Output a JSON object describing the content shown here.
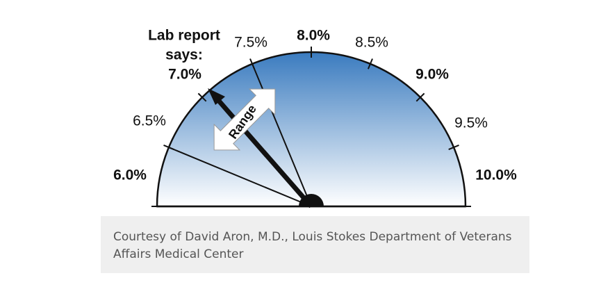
{
  "gauge": {
    "ticks": [
      {
        "label": "6.0%",
        "bold": true
      },
      {
        "label": "6.5%",
        "bold": false
      },
      {
        "label": "7.0%",
        "bold": true
      },
      {
        "label": "7.5%",
        "bold": false
      },
      {
        "label": "8.0%",
        "bold": true
      },
      {
        "label": "8.5%",
        "bold": false
      },
      {
        "label": "9.0%",
        "bold": true
      },
      {
        "label": "9.5%",
        "bold": false
      },
      {
        "label": "10.0%",
        "bold": true
      }
    ],
    "reading_label": [
      "Lab report",
      "says:"
    ],
    "range_label": "Range"
  },
  "caption": "Courtesy of David Aron, M.D., Louis Stokes Department of Veterans Affairs Medical Center"
}
